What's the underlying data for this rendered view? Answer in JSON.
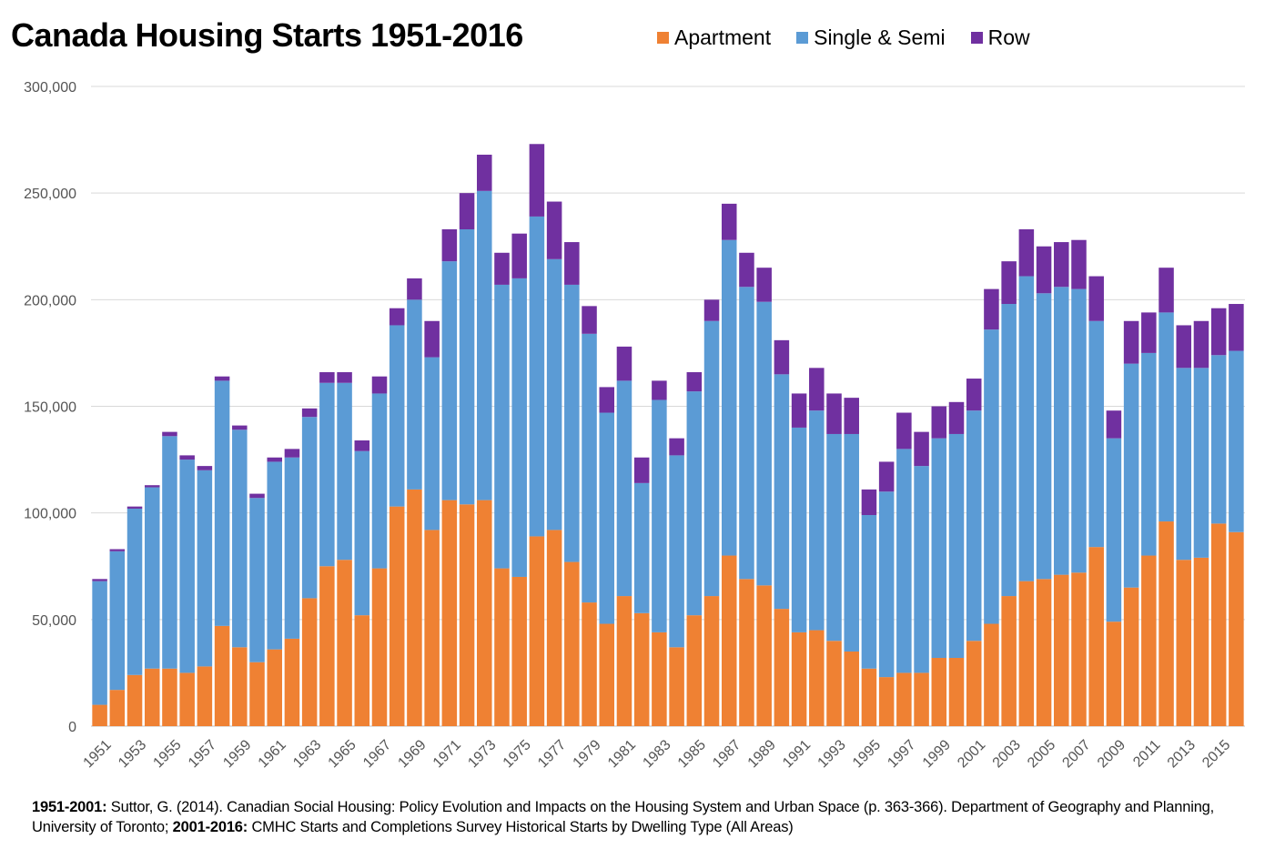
{
  "chart_data": {
    "type": "bar",
    "stacked": true,
    "title": "Canada Housing Starts 1951-2016",
    "xlabel": "",
    "ylabel": "",
    "ylim": [
      0,
      300000
    ],
    "yticks": [
      0,
      50000,
      100000,
      150000,
      200000,
      250000,
      300000
    ],
    "ytick_labels": [
      "0",
      "50,000",
      "100,000",
      "150,000",
      "200,000",
      "250,000",
      "300,000"
    ],
    "grid": true,
    "legend_position": "top",
    "categories": [
      1951,
      1952,
      1953,
      1954,
      1955,
      1956,
      1957,
      1958,
      1959,
      1960,
      1961,
      1962,
      1963,
      1964,
      1965,
      1966,
      1967,
      1968,
      1969,
      1970,
      1971,
      1972,
      1973,
      1974,
      1975,
      1976,
      1977,
      1978,
      1979,
      1980,
      1981,
      1982,
      1983,
      1984,
      1985,
      1986,
      1987,
      1988,
      1989,
      1990,
      1991,
      1992,
      1993,
      1994,
      1995,
      1996,
      1997,
      1998,
      1999,
      2000,
      2001,
      2002,
      2003,
      2004,
      2005,
      2006,
      2007,
      2008,
      2009,
      2010,
      2011,
      2012,
      2013,
      2014,
      2015,
      2016
    ],
    "xtick_labels": [
      "1951",
      "1953",
      "1955",
      "1957",
      "1959",
      "1961",
      "1963",
      "1965",
      "1967",
      "1969",
      "1971",
      "1973",
      "1975",
      "1977",
      "1979",
      "1981",
      "1983",
      "1985",
      "1987",
      "1989",
      "1991",
      "1993",
      "1995",
      "1997",
      "1999",
      "2001",
      "2003",
      "2005",
      "2007",
      "2009",
      "2011",
      "2013",
      "2015"
    ],
    "series": [
      {
        "name": "Apartment",
        "color": "#ef8133",
        "values": [
          10000,
          17000,
          24000,
          27000,
          27000,
          25000,
          28000,
          47000,
          37000,
          30000,
          36000,
          41000,
          60000,
          75000,
          78000,
          52000,
          74000,
          103000,
          111000,
          92000,
          106000,
          104000,
          106000,
          74000,
          70000,
          89000,
          92000,
          77000,
          58000,
          48000,
          61000,
          53000,
          44000,
          37000,
          52000,
          61000,
          80000,
          69000,
          66000,
          55000,
          44000,
          45000,
          40000,
          35000,
          27000,
          23000,
          25000,
          25000,
          32000,
          32000,
          40000,
          48000,
          61000,
          68000,
          69000,
          71000,
          72000,
          84000,
          49000,
          65000,
          80000,
          96000,
          78000,
          79000,
          95000,
          91000
        ]
      },
      {
        "name": "Single & Semi",
        "color": "#5b9bd5",
        "values": [
          58000,
          65000,
          78000,
          85000,
          109000,
          100000,
          92000,
          115000,
          102000,
          77000,
          88000,
          85000,
          85000,
          86000,
          83000,
          77000,
          82000,
          85000,
          89000,
          81000,
          112000,
          129000,
          145000,
          133000,
          140000,
          150000,
          127000,
          130000,
          126000,
          99000,
          101000,
          61000,
          109000,
          90000,
          105000,
          129000,
          148000,
          137000,
          133000,
          110000,
          96000,
          103000,
          97000,
          102000,
          72000,
          87000,
          105000,
          97000,
          103000,
          105000,
          108000,
          138000,
          137000,
          143000,
          134000,
          135000,
          133000,
          106000,
          86000,
          105000,
          95000,
          98000,
          90000,
          89000,
          79000,
          85000
        ]
      },
      {
        "name": "Row",
        "color": "#7030a0",
        "values": [
          1000,
          1000,
          1000,
          1000,
          2000,
          2000,
          2000,
          2000,
          2000,
          2000,
          2000,
          4000,
          4000,
          5000,
          5000,
          5000,
          8000,
          8000,
          10000,
          17000,
          15000,
          17000,
          17000,
          15000,
          21000,
          34000,
          27000,
          20000,
          13000,
          12000,
          16000,
          12000,
          9000,
          8000,
          9000,
          10000,
          17000,
          16000,
          16000,
          16000,
          16000,
          20000,
          19000,
          17000,
          12000,
          14000,
          17000,
          16000,
          15000,
          15000,
          15000,
          19000,
          20000,
          22000,
          22000,
          21000,
          23000,
          21000,
          13000,
          20000,
          19000,
          21000,
          20000,
          22000,
          22000,
          22000
        ]
      }
    ]
  },
  "source": {
    "part1_label": "1951-2001:",
    "part1_text": " Suttor, G. (2014). Canadian Social Housing: Policy Evolution and Impacts on the Housing System and Urban Space (p. 363-366). Department of Geography and Planning, University of Toronto; ",
    "part2_label": "2001-2016:",
    "part2_text": " CMHC Starts and Completions Survey Historical Starts by Dwelling Type (All Areas)"
  }
}
